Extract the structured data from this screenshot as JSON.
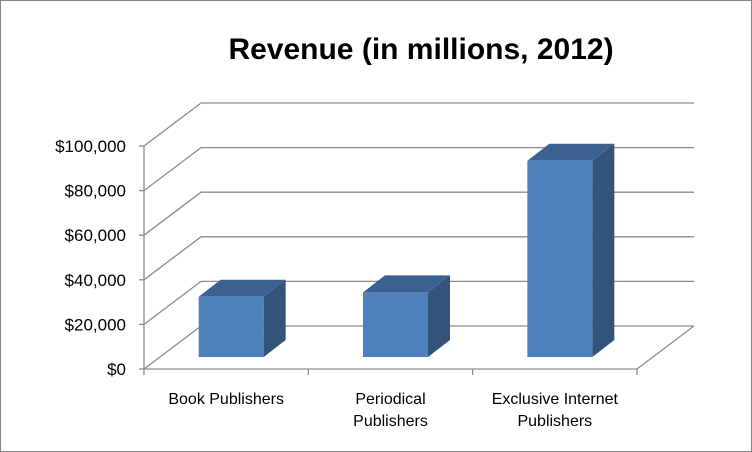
{
  "chart_data": {
    "type": "bar",
    "style": "3d-column",
    "title": "Revenue (in millions, 2012)",
    "xlabel": "",
    "ylabel": "",
    "categories": [
      [
        "Book Publishers"
      ],
      [
        "Periodical",
        "Publishers"
      ],
      [
        "Exclusive Internet",
        "Publishers"
      ]
    ],
    "values": [
      27000,
      29000,
      88000
    ],
    "ylim": [
      0,
      100000
    ],
    "yticks": [
      0,
      20000,
      40000,
      60000,
      80000,
      100000
    ],
    "ytick_labels": [
      "$0",
      "$20,000",
      "$40,000",
      "$60,000",
      "$80,000",
      "$100,000"
    ],
    "grid": true,
    "legend": "none",
    "colors": {
      "front": "#4f81bd",
      "top": "#3b6290",
      "side": "#335378",
      "grid": "#8c8c8c"
    }
  }
}
